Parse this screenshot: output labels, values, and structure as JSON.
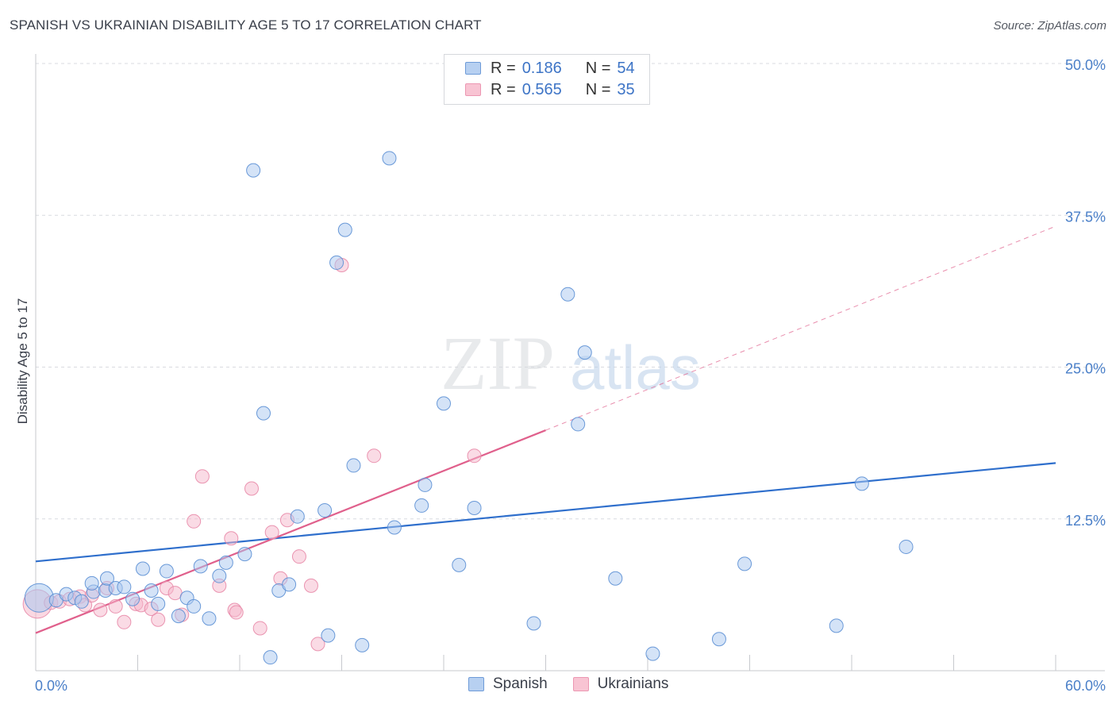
{
  "title": "SPANISH VS UKRAINIAN DISABILITY AGE 5 TO 17 CORRELATION CHART",
  "source": "Source: ZipAtlas.com",
  "watermark": {
    "zip": "ZIP",
    "atlas": "atlas"
  },
  "legend": {
    "rows": [
      {
        "r_label": "R =",
        "r_value": "0.186",
        "n_label": "N =",
        "n_value": "54"
      },
      {
        "r_label": "R =",
        "r_value": "0.565",
        "n_label": "N =",
        "n_value": "35"
      }
    ]
  },
  "bottom_legend": {
    "spanish": "Spanish",
    "ukrainians": "Ukrainians"
  },
  "colors": {
    "spanish_fill": "#a9c8ef",
    "spanish_stroke": "#5b8fd4",
    "spanish_line": "#2f6fcc",
    "ukrainian_fill": "#f6b8cb",
    "ukrainian_stroke": "#e88aa8",
    "ukrainian_line": "#e0608c",
    "tick_label": "#4a7fc8",
    "grid": "#d9dbe0"
  },
  "chart_data": {
    "type": "scatter",
    "title": "SPANISH VS UKRAINIAN DISABILITY AGE 5 TO 17 CORRELATION CHART",
    "xlabel": "",
    "ylabel": "Disability Age 5 to 17",
    "xlim": [
      0,
      60
    ],
    "ylim": [
      0,
      50
    ],
    "x_tick_labels": [
      "0.0%",
      "60.0%"
    ],
    "y_ticks": [
      12.5,
      25.0,
      37.5,
      50.0
    ],
    "y_tick_labels": [
      "12.5%",
      "25.0%",
      "37.5%",
      "50.0%"
    ],
    "grid": true,
    "legend_position": "top-center",
    "series": [
      {
        "name": "Spanish",
        "r": 0.186,
        "n": 54,
        "trend": {
          "x": [
            0,
            60
          ],
          "y": [
            9.0,
            17.1
          ]
        },
        "points": [
          {
            "x": 0.2,
            "y": 6.0,
            "big": true
          },
          {
            "x": 1.2,
            "y": 5.8
          },
          {
            "x": 1.8,
            "y": 6.3
          },
          {
            "x": 2.3,
            "y": 6.0
          },
          {
            "x": 2.7,
            "y": 5.7
          },
          {
            "x": 3.4,
            "y": 6.5
          },
          {
            "x": 3.3,
            "y": 7.2
          },
          {
            "x": 4.1,
            "y": 6.6
          },
          {
            "x": 4.2,
            "y": 7.6
          },
          {
            "x": 4.7,
            "y": 6.8
          },
          {
            "x": 5.2,
            "y": 6.9
          },
          {
            "x": 5.7,
            "y": 5.9
          },
          {
            "x": 6.3,
            "y": 8.4
          },
          {
            "x": 6.8,
            "y": 6.6
          },
          {
            "x": 7.2,
            "y": 5.5
          },
          {
            "x": 7.7,
            "y": 8.2
          },
          {
            "x": 8.4,
            "y": 4.5
          },
          {
            "x": 8.9,
            "y": 6.0
          },
          {
            "x": 9.3,
            "y": 5.3
          },
          {
            "x": 9.7,
            "y": 8.6
          },
          {
            "x": 10.2,
            "y": 4.3
          },
          {
            "x": 10.8,
            "y": 7.8
          },
          {
            "x": 11.2,
            "y": 8.9
          },
          {
            "x": 12.3,
            "y": 9.6
          },
          {
            "x": 12.8,
            "y": 41.2
          },
          {
            "x": 13.4,
            "y": 21.2
          },
          {
            "x": 13.8,
            "y": 1.1
          },
          {
            "x": 14.3,
            "y": 6.6
          },
          {
            "x": 14.9,
            "y": 7.1
          },
          {
            "x": 15.4,
            "y": 12.7
          },
          {
            "x": 17.0,
            "y": 13.2
          },
          {
            "x": 17.2,
            "y": 2.9
          },
          {
            "x": 17.7,
            "y": 33.6
          },
          {
            "x": 18.2,
            "y": 36.3
          },
          {
            "x": 18.7,
            "y": 16.9
          },
          {
            "x": 19.2,
            "y": 2.1
          },
          {
            "x": 20.8,
            "y": 42.2
          },
          {
            "x": 21.1,
            "y": 11.8
          },
          {
            "x": 22.7,
            "y": 13.6
          },
          {
            "x": 22.9,
            "y": 15.3
          },
          {
            "x": 24.0,
            "y": 22.0
          },
          {
            "x": 24.9,
            "y": 8.7
          },
          {
            "x": 25.8,
            "y": 13.4
          },
          {
            "x": 29.3,
            "y": 3.9
          },
          {
            "x": 31.3,
            "y": 31.0
          },
          {
            "x": 31.9,
            "y": 20.3
          },
          {
            "x": 32.3,
            "y": 26.2
          },
          {
            "x": 34.1,
            "y": 7.6
          },
          {
            "x": 36.3,
            "y": 1.4
          },
          {
            "x": 40.2,
            "y": 2.6
          },
          {
            "x": 41.7,
            "y": 8.8
          },
          {
            "x": 47.1,
            "y": 3.7
          },
          {
            "x": 48.6,
            "y": 15.4
          },
          {
            "x": 51.2,
            "y": 10.2
          }
        ]
      },
      {
        "name": "Ukrainians",
        "r": 0.565,
        "n": 35,
        "trend": {
          "x": [
            0,
            30
          ],
          "y": [
            3.1,
            19.8
          ]
        },
        "trend_extension": {
          "x": [
            30,
            60
          ],
          "y": [
            19.8,
            36.6
          ]
        },
        "points": [
          {
            "x": 0.1,
            "y": 5.5,
            "big": true
          },
          {
            "x": 0.9,
            "y": 5.6
          },
          {
            "x": 1.4,
            "y": 5.7
          },
          {
            "x": 2.0,
            "y": 5.9
          },
          {
            "x": 2.6,
            "y": 6.1
          },
          {
            "x": 2.9,
            "y": 5.4
          },
          {
            "x": 3.3,
            "y": 6.2
          },
          {
            "x": 3.8,
            "y": 5.0
          },
          {
            "x": 4.2,
            "y": 6.8
          },
          {
            "x": 4.7,
            "y": 5.3
          },
          {
            "x": 5.2,
            "y": 4.0
          },
          {
            "x": 5.9,
            "y": 5.5
          },
          {
            "x": 6.2,
            "y": 5.4
          },
          {
            "x": 6.8,
            "y": 5.1
          },
          {
            "x": 7.2,
            "y": 4.2
          },
          {
            "x": 7.7,
            "y": 6.8
          },
          {
            "x": 8.2,
            "y": 6.4
          },
          {
            "x": 8.6,
            "y": 4.6
          },
          {
            "x": 9.3,
            "y": 12.3
          },
          {
            "x": 9.8,
            "y": 16.0
          },
          {
            "x": 10.8,
            "y": 7.0
          },
          {
            "x": 11.5,
            "y": 10.9
          },
          {
            "x": 11.7,
            "y": 5.0
          },
          {
            "x": 11.8,
            "y": 4.8
          },
          {
            "x": 12.7,
            "y": 15.0
          },
          {
            "x": 13.2,
            "y": 3.5
          },
          {
            "x": 13.9,
            "y": 11.4
          },
          {
            "x": 14.4,
            "y": 7.6
          },
          {
            "x": 14.8,
            "y": 12.4
          },
          {
            "x": 15.5,
            "y": 9.4
          },
          {
            "x": 16.2,
            "y": 7.0
          },
          {
            "x": 16.6,
            "y": 2.2
          },
          {
            "x": 18.0,
            "y": 33.4
          },
          {
            "x": 19.9,
            "y": 17.7
          },
          {
            "x": 25.8,
            "y": 17.7
          }
        ]
      }
    ]
  }
}
